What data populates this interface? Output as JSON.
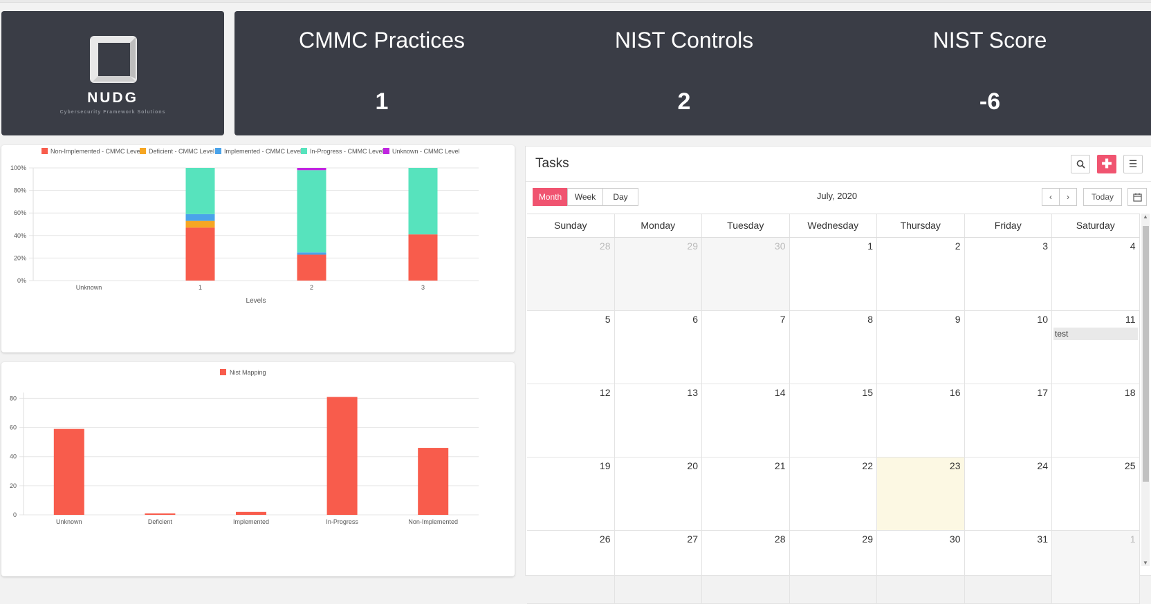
{
  "logo": {
    "name": "NUDG",
    "subtitle": "Cybersecurity Framework Solutions"
  },
  "stats": [
    {
      "label": "CMMC Practices",
      "value": "1"
    },
    {
      "label": "NIST Controls",
      "value": "2"
    },
    {
      "label": "NIST Score",
      "value": "-6"
    }
  ],
  "chart_data": [
    {
      "type": "bar",
      "stacked": true,
      "categories": [
        "Unknown",
        "1",
        "2",
        "3"
      ],
      "xlabel": "Levels",
      "ylabel": "",
      "ylim": [
        0,
        100
      ],
      "yticks": [
        "0%",
        "20%",
        "40%",
        "60%",
        "80%",
        "100%"
      ],
      "legend_position": "top",
      "series": [
        {
          "name": "Non-Implemented - CMMC Level",
          "color": "#f85c4c",
          "values": [
            0,
            47,
            23,
            41
          ]
        },
        {
          "name": "Deficient - CMMC Level",
          "color": "#f6a623",
          "values": [
            0,
            6,
            0,
            0
          ]
        },
        {
          "name": "Implemented - CMMC Level",
          "color": "#4aa3ea",
          "values": [
            0,
            6,
            2,
            0
          ]
        },
        {
          "name": "In-Progress - CMMC Level",
          "color": "#57e3bd",
          "values": [
            0,
            41,
            73,
            59
          ]
        },
        {
          "name": "Unknown - CMMC Level",
          "color": "#c026e0",
          "values": [
            0,
            0,
            2,
            0
          ]
        }
      ]
    },
    {
      "type": "bar",
      "categories": [
        "Unknown",
        "Deficient",
        "Implemented",
        "In-Progress",
        "Non-Implemented"
      ],
      "xlabel": "",
      "ylabel": "",
      "ylim": [
        0,
        84
      ],
      "yticks": [
        "0",
        "20",
        "40",
        "60",
        "80"
      ],
      "legend_position": "top",
      "series": [
        {
          "name": "Nist Mapping",
          "color": "#f85c4c",
          "values": [
            59,
            1,
            2,
            81,
            46
          ]
        }
      ]
    }
  ],
  "tasks": {
    "title": "Tasks",
    "views": [
      "Month",
      "Week",
      "Day"
    ],
    "active_view": "Month",
    "month_title": "July, 2020",
    "today_label": "Today",
    "weekdays": [
      "Sunday",
      "Monday",
      "Tuesday",
      "Wednesday",
      "Thursday",
      "Friday",
      "Saturday"
    ],
    "weeks": [
      [
        "28",
        "29",
        "30",
        "1",
        "2",
        "3",
        "4"
      ],
      [
        "5",
        "6",
        "7",
        "8",
        "9",
        "10",
        "11"
      ],
      [
        "12",
        "13",
        "14",
        "15",
        "16",
        "17",
        "18"
      ],
      [
        "19",
        "20",
        "21",
        "22",
        "23",
        "24",
        "25"
      ],
      [
        "26",
        "27",
        "28",
        "29",
        "30",
        "31",
        "1"
      ]
    ],
    "other_month_cells": [
      "0-0",
      "0-1",
      "0-2",
      "4-6"
    ],
    "today_cell": "3-4",
    "events": [
      {
        "cell": "1-6",
        "label": "test"
      }
    ],
    "icons": [
      "search-icon",
      "plus-icon",
      "menu-icon",
      "calendar-icon",
      "chevron-left-icon",
      "chevron-right-icon"
    ]
  }
}
